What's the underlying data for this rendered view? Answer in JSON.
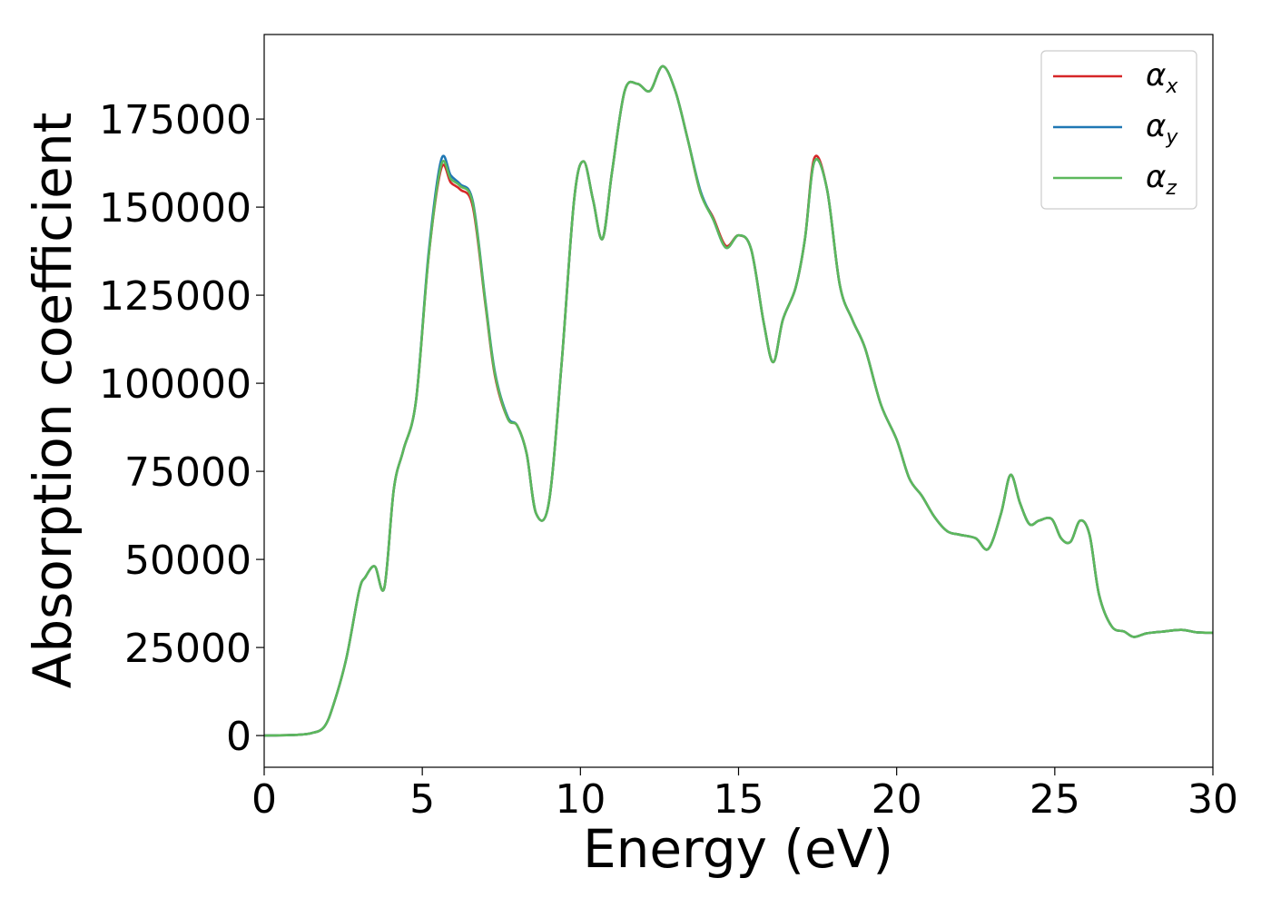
{
  "chart_data": {
    "type": "line",
    "xlabel": "Energy (eV)",
    "ylabel": "Absorption coefficient",
    "xlim": [
      0,
      30
    ],
    "ylim": [
      -9000,
      199000
    ],
    "xticks": [
      0,
      5,
      10,
      15,
      20,
      25,
      30
    ],
    "xtick_labels": [
      "0",
      "5",
      "10",
      "15",
      "20",
      "25",
      "30"
    ],
    "yticks": [
      0,
      25000,
      50000,
      75000,
      100000,
      125000,
      150000,
      175000
    ],
    "ytick_labels": [
      "0",
      "25000",
      "50000",
      "75000",
      "100000",
      "125000",
      "150000",
      "175000"
    ],
    "grid": false,
    "legend_position": "top-right",
    "series": [
      {
        "name": "α",
        "subscript": "x",
        "color": "#d62728",
        "x": [
          0,
          1,
          1.5,
          1.9,
          2.2,
          2.6,
          3.0,
          3.2,
          3.5,
          3.8,
          4.1,
          4.4,
          4.8,
          5.2,
          5.6,
          5.9,
          6.2,
          6.6,
          7.0,
          7.3,
          7.7,
          8.0,
          8.3,
          8.6,
          9.0,
          9.4,
          9.8,
          10.1,
          10.4,
          10.7,
          11.0,
          11.4,
          11.8,
          12.2,
          12.6,
          13.0,
          13.4,
          13.8,
          14.2,
          14.6,
          15.0,
          15.4,
          15.8,
          16.1,
          16.4,
          16.8,
          17.1,
          17.4,
          17.8,
          18.2,
          18.6,
          19.0,
          19.5,
          20.0,
          20.4,
          20.8,
          21.2,
          21.6,
          22.0,
          22.5,
          22.9,
          23.3,
          23.6,
          23.9,
          24.2,
          24.5,
          24.9,
          25.2,
          25.5,
          25.8,
          26.1,
          26.4,
          26.8,
          27.2,
          27.5,
          27.9,
          28.4,
          29.0,
          29.5,
          30.0
        ],
        "values": [
          0,
          200,
          700,
          2500,
          9000,
          22000,
          41000,
          45000,
          48000,
          42000,
          70000,
          81000,
          95000,
          136000,
          161000,
          157000,
          155000,
          150000,
          122000,
          102000,
          90000,
          88000,
          80000,
          63000,
          66000,
          105000,
          152000,
          163000,
          152000,
          141000,
          160000,
          183000,
          185000,
          183000,
          190000,
          183000,
          169000,
          154000,
          147000,
          139000,
          142000,
          138000,
          117000,
          106000,
          118000,
          127000,
          141000,
          164000,
          155000,
          128000,
          118000,
          110000,
          94000,
          84000,
          73000,
          68000,
          62000,
          58000,
          57000,
          56000,
          53000,
          63000,
          74000,
          66000,
          60000,
          61000,
          61500,
          56000,
          55000,
          61000,
          57000,
          40000,
          31000,
          29500,
          28000,
          29000,
          29500,
          30000,
          29300,
          29200
        ]
      },
      {
        "name": "α",
        "subscript": "y",
        "color": "#1f77b4",
        "x": [
          0,
          1,
          1.5,
          1.9,
          2.2,
          2.6,
          3.0,
          3.2,
          3.5,
          3.8,
          4.1,
          4.4,
          4.8,
          5.2,
          5.6,
          5.9,
          6.2,
          6.6,
          7.0,
          7.3,
          7.7,
          8.0,
          8.3,
          8.6,
          9.0,
          9.4,
          9.8,
          10.1,
          10.4,
          10.7,
          11.0,
          11.4,
          11.8,
          12.2,
          12.6,
          13.0,
          13.4,
          13.8,
          14.2,
          14.6,
          15.0,
          15.4,
          15.8,
          16.1,
          16.4,
          16.8,
          17.1,
          17.4,
          17.8,
          18.2,
          18.6,
          19.0,
          19.5,
          20.0,
          20.4,
          20.8,
          21.2,
          21.6,
          22.0,
          22.5,
          22.9,
          23.3,
          23.6,
          23.9,
          24.2,
          24.5,
          24.9,
          25.2,
          25.5,
          25.8,
          26.1,
          26.4,
          26.8,
          27.2,
          27.5,
          27.9,
          28.4,
          29.0,
          29.5,
          30.0
        ],
        "values": [
          0,
          200,
          700,
          2500,
          9000,
          22000,
          41000,
          45000,
          48000,
          42000,
          70000,
          81000,
          95000,
          137000,
          163500,
          159000,
          156500,
          151500,
          123000,
          103000,
          90500,
          88000,
          80000,
          63000,
          66000,
          105000,
          152000,
          163000,
          152000,
          141000,
          160000,
          183000,
          185000,
          183000,
          190000,
          183000,
          169000,
          154500,
          146500,
          138500,
          142000,
          138000,
          117000,
          106000,
          118000,
          127000,
          141000,
          163000,
          155000,
          128000,
          118000,
          110000,
          94000,
          84000,
          73000,
          68000,
          62000,
          58000,
          57000,
          56000,
          53000,
          63000,
          74000,
          66000,
          60000,
          61000,
          61500,
          56000,
          55000,
          61000,
          57000,
          40000,
          31000,
          29500,
          28000,
          29000,
          29500,
          30000,
          29300,
          29200
        ]
      },
      {
        "name": "α",
        "subscript": "z",
        "color": "#5cb85c",
        "x": [
          0,
          1,
          1.5,
          1.9,
          2.2,
          2.6,
          3.0,
          3.2,
          3.5,
          3.8,
          4.1,
          4.4,
          4.8,
          5.2,
          5.6,
          5.9,
          6.2,
          6.6,
          7.0,
          7.3,
          7.7,
          8.0,
          8.3,
          8.6,
          9.0,
          9.4,
          9.8,
          10.1,
          10.4,
          10.7,
          11.0,
          11.4,
          11.8,
          12.2,
          12.6,
          13.0,
          13.4,
          13.8,
          14.2,
          14.6,
          15.0,
          15.4,
          15.8,
          16.1,
          16.4,
          16.8,
          17.1,
          17.4,
          17.8,
          18.2,
          18.6,
          19.0,
          19.5,
          20.0,
          20.4,
          20.8,
          21.2,
          21.6,
          22.0,
          22.5,
          22.9,
          23.3,
          23.6,
          23.9,
          24.2,
          24.5,
          24.9,
          25.2,
          25.5,
          25.8,
          26.1,
          26.4,
          26.8,
          27.2,
          27.5,
          27.9,
          28.4,
          29.0,
          29.5,
          30.0
        ],
        "values": [
          0,
          200,
          700,
          2500,
          9000,
          22000,
          41000,
          45000,
          48000,
          42000,
          70000,
          81000,
          95000,
          136000,
          162000,
          158000,
          156000,
          151000,
          122500,
          102500,
          90000,
          88000,
          80000,
          63000,
          66000,
          105000,
          152000,
          163000,
          152000,
          141000,
          160000,
          183000,
          185000,
          183000,
          190000,
          183000,
          169000,
          154000,
          146500,
          138500,
          142000,
          138000,
          117000,
          106000,
          118000,
          127000,
          141000,
          163000,
          155000,
          128000,
          118000,
          110000,
          94000,
          84000,
          73000,
          68000,
          62000,
          58000,
          57000,
          56000,
          53000,
          63000,
          74000,
          66000,
          60000,
          61000,
          61500,
          56000,
          55000,
          61000,
          57000,
          40000,
          31000,
          29500,
          28000,
          29000,
          29500,
          30000,
          29300,
          29200
        ]
      }
    ]
  }
}
